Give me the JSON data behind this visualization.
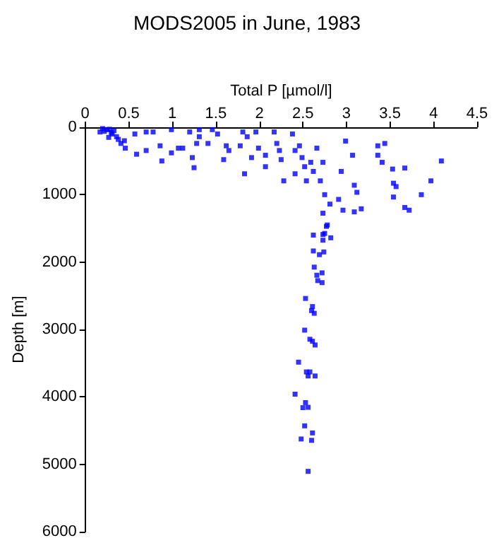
{
  "chart_data": {
    "type": "scatter",
    "title": "MODS2005 in June, 1983",
    "xlabel": "Total P [µmol/l]",
    "ylabel": "Depth [m]",
    "xlim": [
      0,
      4.5
    ],
    "xticks": [
      0,
      0.5,
      1,
      1.5,
      2,
      2.5,
      3,
      3.5,
      4,
      4.5
    ],
    "ylim": [
      6000,
      0
    ],
    "yticks": [
      0,
      1000,
      2000,
      3000,
      4000,
      5000,
      6000
    ],
    "grid": false,
    "marker": "square",
    "series": [
      {
        "color": "#0000ff",
        "x": [
          0.17,
          0.25,
          0.31,
          0.36,
          0.41,
          0.46,
          0.59,
          0.57,
          0.7,
          0.78,
          0.7,
          0.88,
          0.86,
          0.99,
          0.99,
          1.07,
          1.12,
          1.2,
          1.23,
          1.25,
          1.31,
          1.31,
          1.28,
          1.41,
          1.46,
          1.52,
          1.59,
          1.62,
          1.65,
          1.81,
          1.78,
          1.83,
          1.86,
          1.91,
          1.96,
          1.99,
          2.07,
          2.07,
          2.17,
          2.2,
          2.23,
          2.25,
          2.28,
          2.38,
          2.41,
          2.41,
          2.46,
          2.49,
          2.52,
          2.54,
          2.59,
          2.62,
          2.66,
          2.73,
          2.7,
          2.75,
          2.81,
          2.73,
          2.78,
          2.73,
          2.94,
          2.91,
          2.99,
          3.07,
          3.09,
          3.12,
          2.96,
          3.09,
          3.17,
          3.36,
          3.44,
          3.36,
          3.41,
          3.53,
          3.54,
          3.57,
          3.54,
          3.67,
          3.67,
          3.72,
          3.86,
          3.97,
          4.09,
          0.2,
          0.22,
          0.28,
          0.3,
          0.33,
          0.38,
          0.27,
          0.45,
          2.77,
          2.62,
          2.75,
          2.82,
          2.73,
          2.62,
          2.74,
          2.69,
          2.63,
          2.66,
          2.72,
          2.67,
          2.72,
          2.53,
          2.61,
          2.6,
          2.63,
          2.52,
          2.58,
          2.61,
          2.64,
          2.45,
          2.54,
          2.58,
          2.56,
          2.64,
          2.41,
          2.53,
          2.5,
          2.56,
          2.52,
          2.61,
          2.48,
          2.6,
          2.56
        ],
        "values": [
          70,
          35,
          100,
          140,
          240,
          310,
          400,
          100,
          70,
          70,
          345,
          500,
          275,
          35,
          380,
          310,
          310,
          70,
          450,
          600,
          35,
          140,
          240,
          240,
          35,
          100,
          480,
          275,
          345,
          70,
          275,
          690,
          140,
          450,
          70,
          310,
          415,
          585,
          70,
          240,
          345,
          480,
          795,
          100,
          345,
          690,
          275,
          450,
          585,
          795,
          520,
          655,
          310,
          520,
          795,
          1000,
          1140,
          1275,
          1450,
          1590,
          655,
          1070,
          205,
          415,
          860,
          965,
          1230,
          1255,
          1210,
          275,
          240,
          415,
          520,
          620,
          830,
          880,
          1035,
          605,
          1190,
          1230,
          1000,
          795,
          500,
          20,
          60,
          30,
          80,
          50,
          180,
          150,
          200,
          1470,
          1600,
          1575,
          1640,
          1675,
          1835,
          1850,
          1890,
          2075,
          2195,
          2160,
          2275,
          2305,
          2540,
          2660,
          2720,
          2760,
          3010,
          3145,
          3175,
          3230,
          3485,
          3630,
          3630,
          3690,
          3690,
          3960,
          4085,
          4160,
          4155,
          4430,
          4535,
          4625,
          4645,
          5105
        ]
      }
    ]
  }
}
